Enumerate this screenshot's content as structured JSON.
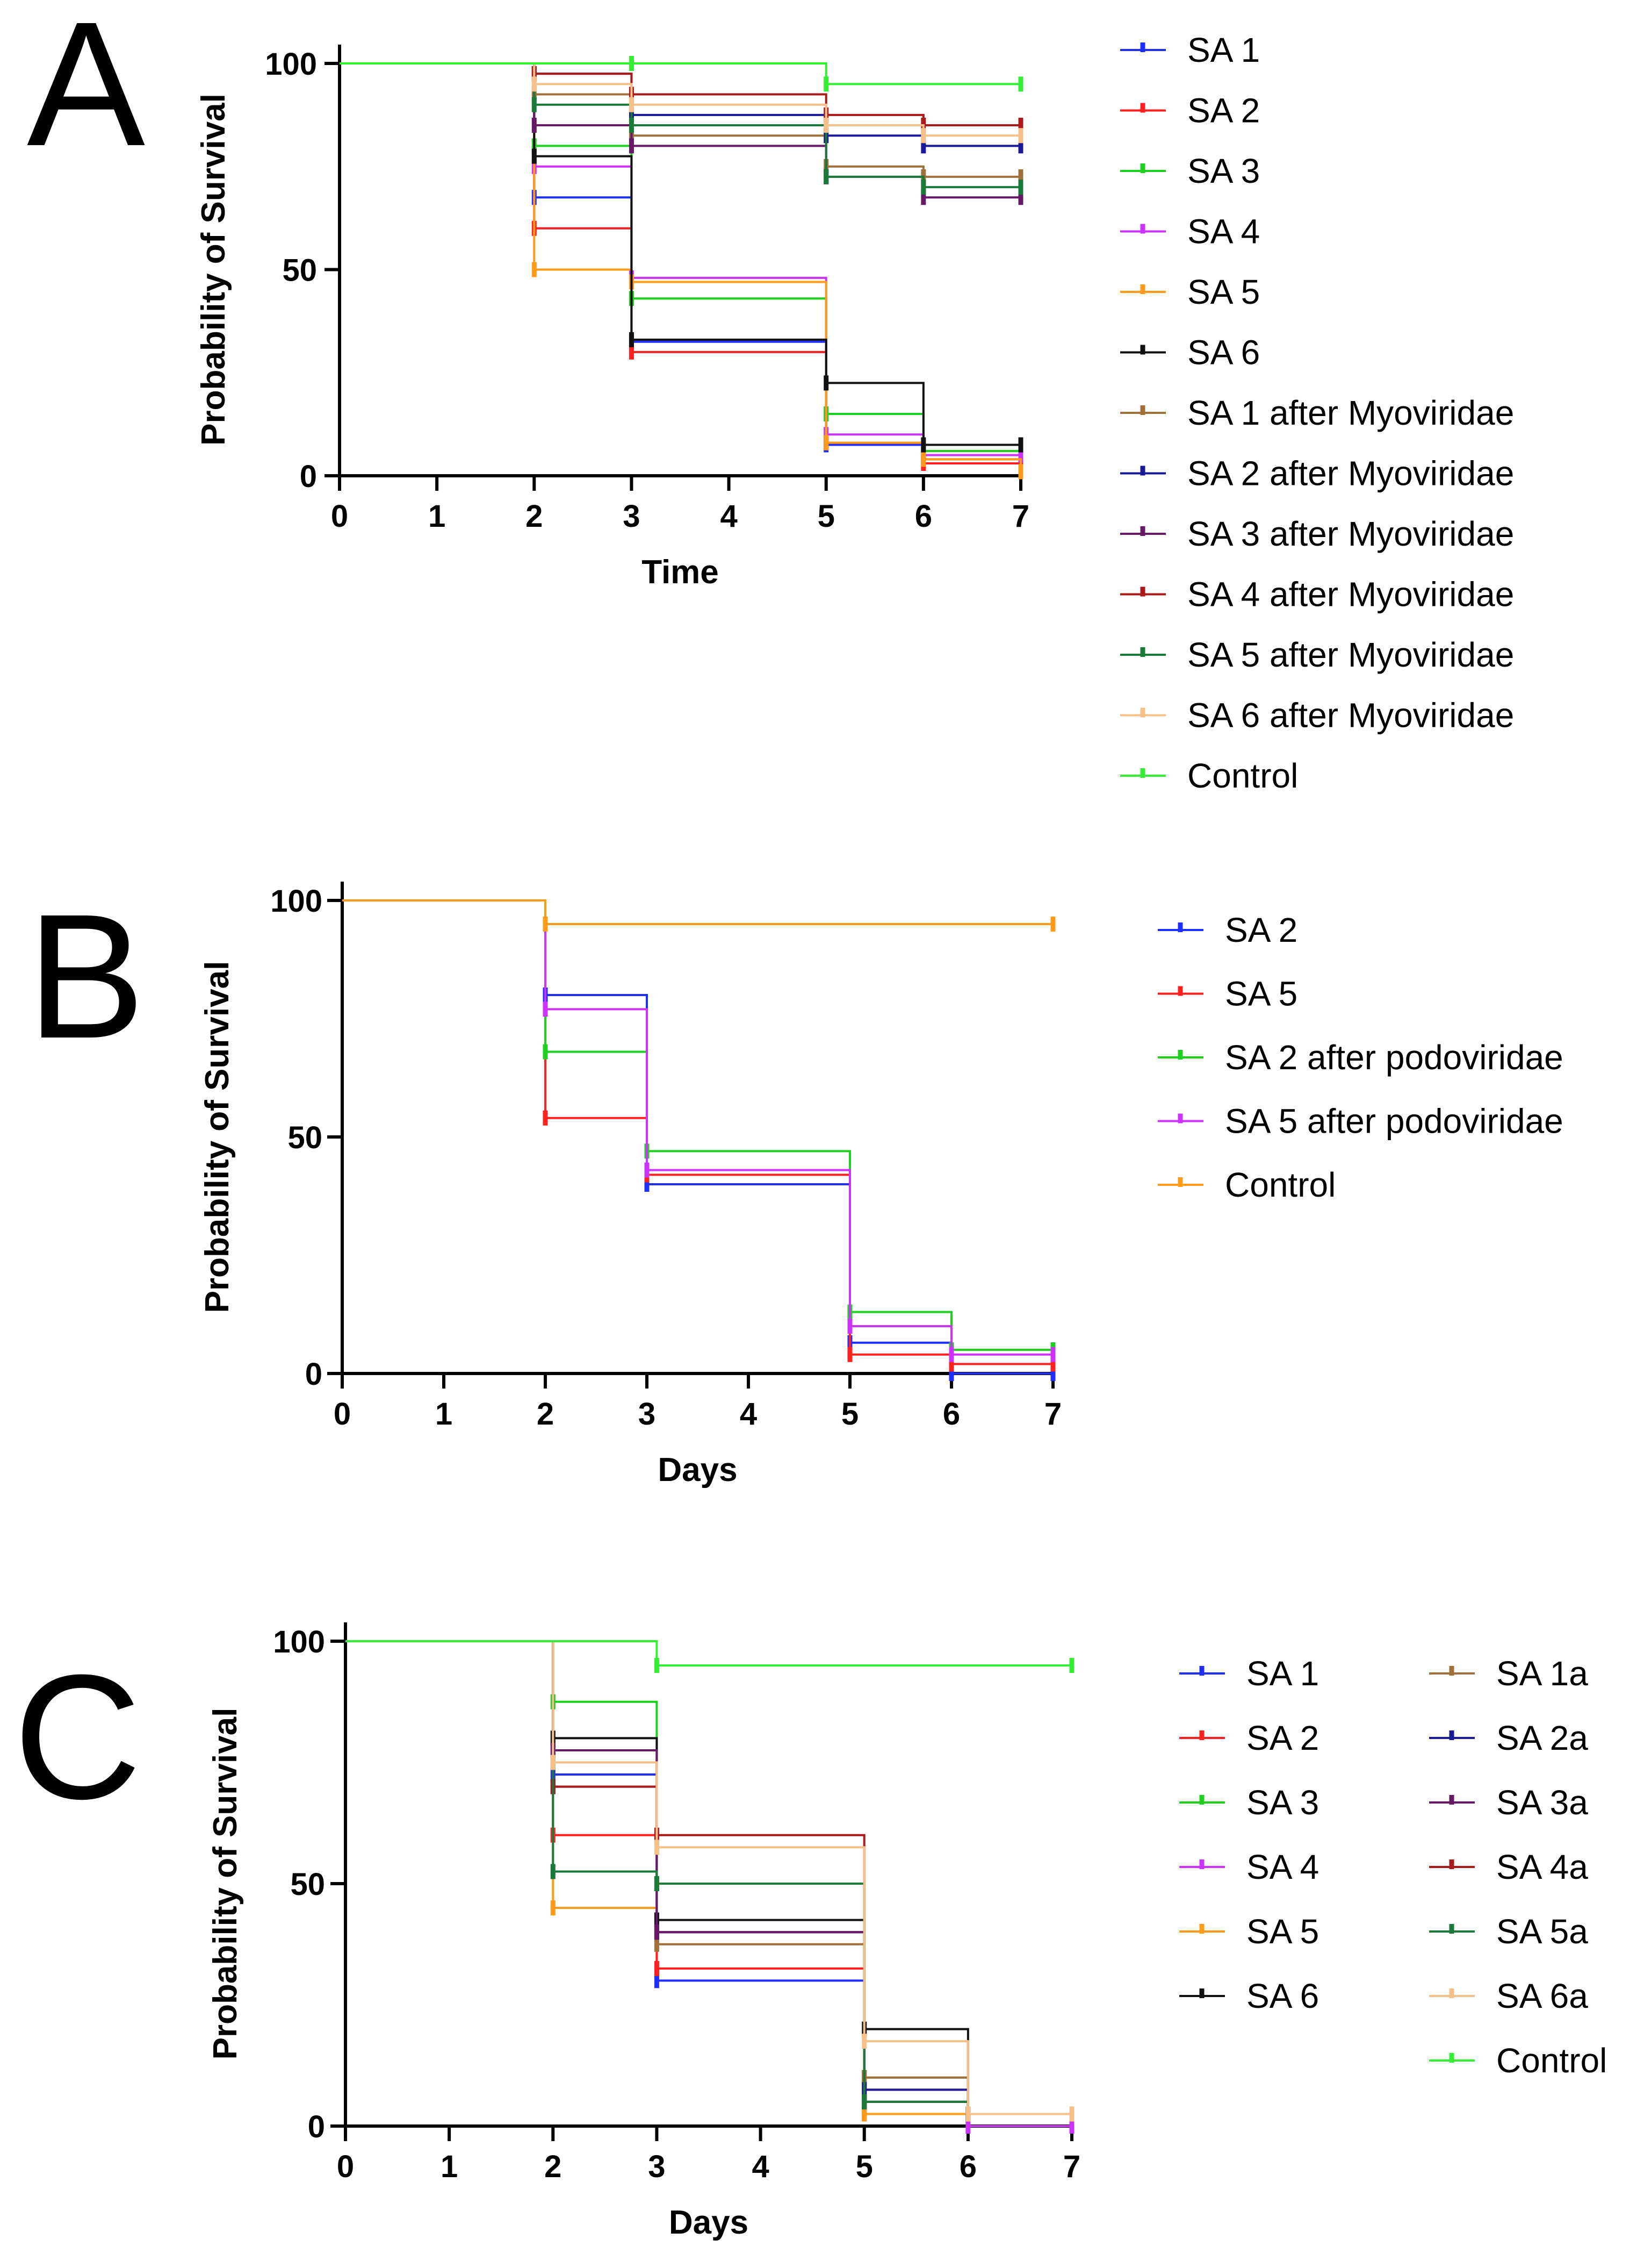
{
  "chart_data": [
    {
      "id": "A",
      "type": "line",
      "subtype": "kaplan-meier step",
      "panel_label": "A",
      "xlabel": "Time",
      "ylabel": "Probability of Survival",
      "xlim": [
        0,
        7
      ],
      "ylim": [
        0,
        100
      ],
      "xticks": [
        0,
        1,
        2,
        3,
        4,
        5,
        6,
        7
      ],
      "yticks": [
        0,
        50,
        100
      ],
      "grid": false,
      "legend_position": "right",
      "series": [
        {
          "name": "SA 1",
          "color": "#1f2fff",
          "times": [
            2,
            3,
            5,
            6
          ],
          "values": [
            67.5,
            32.5,
            7.5,
            4
          ]
        },
        {
          "name": "SA 2",
          "color": "#ff2020",
          "times": [
            2,
            3,
            5,
            6
          ],
          "values": [
            60,
            30,
            8,
            3
          ]
        },
        {
          "name": "SA 3",
          "color": "#20d020",
          "times": [
            2,
            3,
            5,
            6
          ],
          "values": [
            80,
            43,
            15,
            6
          ]
        },
        {
          "name": "SA 4",
          "color": "#cc33ff",
          "times": [
            2,
            3,
            5,
            6
          ],
          "values": [
            75,
            48,
            10,
            5
          ]
        },
        {
          "name": "SA 5",
          "color": "#ff9a1a",
          "times": [
            2,
            3,
            5,
            6,
            7
          ],
          "values": [
            50,
            47,
            8,
            4,
            1
          ]
        },
        {
          "name": "SA 6",
          "color": "#111111",
          "times": [
            2,
            3,
            5,
            6
          ],
          "values": [
            77.5,
            33,
            22.5,
            7.5
          ]
        },
        {
          "name": "SA 1 after Myoviridae",
          "color": "#a0703a",
          "times": [
            2,
            3,
            5,
            6
          ],
          "values": [
            92.5,
            82.5,
            75,
            72.5
          ]
        },
        {
          "name": "SA 2 after Myoviridae",
          "color": "#1a1a99",
          "times": [
            2,
            3,
            5,
            6
          ],
          "values": [
            97.5,
            87.5,
            82.5,
            80
          ]
        },
        {
          "name": "SA 3 after Myoviridae",
          "color": "#661a66",
          "times": [
            2,
            3,
            5,
            6
          ],
          "values": [
            85,
            80,
            72.5,
            67.5
          ]
        },
        {
          "name": "SA 4 after Myoviridae",
          "color": "#aa1a1a",
          "times": [
            2,
            3,
            5,
            6
          ],
          "values": [
            97.5,
            92.5,
            87.5,
            85
          ]
        },
        {
          "name": "SA 5 after Myoviridae",
          "color": "#1a7a3a",
          "times": [
            2,
            3,
            5,
            6
          ],
          "values": [
            90,
            85,
            72.5,
            70
          ]
        },
        {
          "name": "SA 6 after Myoviridae",
          "color": "#f5c08a",
          "times": [
            2,
            3,
            5,
            6
          ],
          "values": [
            95,
            90,
            85,
            82.5
          ]
        },
        {
          "name": "Control",
          "color": "#33ee33",
          "times": [
            3,
            5
          ],
          "values": [
            100,
            95
          ]
        }
      ]
    },
    {
      "id": "B",
      "type": "line",
      "subtype": "kaplan-meier step",
      "panel_label": "B",
      "xlabel": "Days",
      "ylabel": "Probability of Survival",
      "xlim": [
        0,
        7
      ],
      "ylim": [
        0,
        100
      ],
      "xticks": [
        0,
        1,
        2,
        3,
        4,
        5,
        6,
        7
      ],
      "yticks": [
        0,
        50,
        100
      ],
      "grid": false,
      "legend_position": "right",
      "series": [
        {
          "name": "SA 2",
          "color": "#1f2fff",
          "times": [
            2,
            3,
            5,
            6
          ],
          "values": [
            80,
            40,
            6.5,
            0
          ]
        },
        {
          "name": "SA 5",
          "color": "#ff2020",
          "times": [
            2,
            3,
            5,
            6
          ],
          "values": [
            54,
            42,
            4,
            2
          ]
        },
        {
          "name": "SA 2 after podoviridae",
          "color": "#20d020",
          "times": [
            2,
            3,
            5,
            6
          ],
          "values": [
            68,
            47,
            13,
            5
          ]
        },
        {
          "name": "SA 5 after podoviridae",
          "color": "#cc33ff",
          "times": [
            2,
            3,
            5,
            6
          ],
          "values": [
            77,
            43,
            10,
            4
          ]
        },
        {
          "name": "Control",
          "color": "#ff9a1a",
          "times": [
            2
          ],
          "values": [
            95
          ]
        }
      ]
    },
    {
      "id": "C",
      "type": "line",
      "subtype": "kaplan-meier step",
      "panel_label": "C",
      "xlabel": "Days",
      "ylabel": "Probability of Survival",
      "xlim": [
        0,
        7
      ],
      "ylim": [
        0,
        100
      ],
      "xticks": [
        0,
        1,
        2,
        3,
        4,
        5,
        6,
        7
      ],
      "yticks": [
        0,
        50,
        100
      ],
      "grid": false,
      "legend_position": "right",
      "series": [
        {
          "name": "SA 1",
          "color": "#1f2fff",
          "times": [
            2,
            3,
            5,
            6
          ],
          "values": [
            72.5,
            30,
            5,
            2.5
          ]
        },
        {
          "name": "SA 2",
          "color": "#ff2020",
          "times": [
            2,
            3,
            5,
            6
          ],
          "values": [
            60,
            32.5,
            7.5,
            2.5
          ]
        },
        {
          "name": "SA 3",
          "color": "#20d020",
          "times": [
            2,
            3,
            5,
            6
          ],
          "values": [
            87.5,
            50,
            10,
            2.5
          ]
        },
        {
          "name": "SA 4",
          "color": "#cc33ff",
          "times": [
            2,
            3,
            5,
            6
          ],
          "values": [
            77.5,
            40,
            2.5,
            0
          ]
        },
        {
          "name": "SA 5",
          "color": "#ff9a1a",
          "times": [
            2,
            3,
            5
          ],
          "values": [
            45,
            40,
            2.5
          ]
        },
        {
          "name": "SA 6",
          "color": "#111111",
          "times": [
            2,
            3,
            5,
            6
          ],
          "values": [
            80,
            42.5,
            20,
            2.5
          ]
        },
        {
          "name": "SA 1a",
          "color": "#a0703a",
          "times": [
            2,
            3,
            5,
            6
          ],
          "values": [
            75,
            37.5,
            10,
            2.5
          ]
        },
        {
          "name": "SA 2a",
          "color": "#1a1a99",
          "times": [
            2,
            3,
            5,
            6
          ],
          "values": [
            70,
            40,
            7.5,
            2.5
          ]
        },
        {
          "name": "SA 3a",
          "color": "#661a66",
          "times": [
            2,
            3,
            5,
            6
          ],
          "values": [
            77.5,
            40,
            5,
            2.5
          ]
        },
        {
          "name": "SA 4a",
          "color": "#aa1a1a",
          "times": [
            2,
            3,
            5,
            6
          ],
          "values": [
            70,
            60,
            5,
            2.5
          ]
        },
        {
          "name": "SA 5a",
          "color": "#1a7a3a",
          "times": [
            2,
            3,
            5,
            6
          ],
          "values": [
            52.5,
            50,
            5,
            2.5
          ]
        },
        {
          "name": "SA 6a",
          "color": "#f5c08a",
          "times": [
            2,
            3,
            5,
            6
          ],
          "values": [
            75,
            57.5,
            17.5,
            2.5
          ]
        },
        {
          "name": "Control",
          "color": "#33ee33",
          "times": [
            3
          ],
          "values": [
            95
          ]
        }
      ]
    }
  ]
}
